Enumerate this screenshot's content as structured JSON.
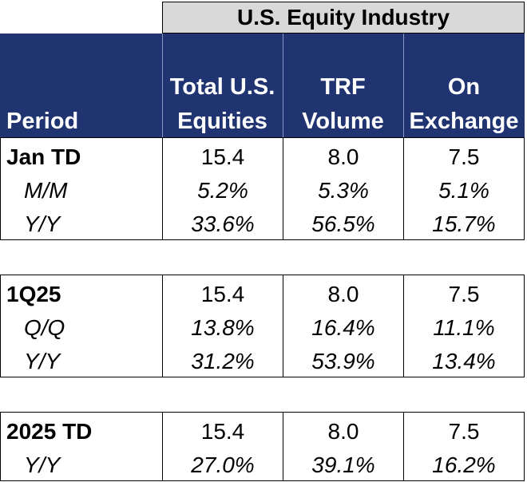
{
  "banner": "U.S. Equity Industry",
  "header": {
    "period": "Period",
    "col1": [
      "Total U.S.",
      "Equities"
    ],
    "col2": [
      "TRF",
      "Volume"
    ],
    "col3": [
      "On",
      "Exchange"
    ]
  },
  "blocks": [
    {
      "rows": [
        {
          "label": "Jan TD",
          "values": [
            "15.4",
            "8.0",
            "7.5"
          ]
        },
        {
          "label": "M/M",
          "values": [
            "5.2%",
            "5.3%",
            "5.1%"
          ]
        },
        {
          "label": "Y/Y",
          "values": [
            "33.6%",
            "56.5%",
            "15.7%"
          ]
        }
      ]
    },
    {
      "rows": [
        {
          "label": "1Q25",
          "values": [
            "15.4",
            "8.0",
            "7.5"
          ]
        },
        {
          "label": "Q/Q",
          "values": [
            "13.8%",
            "16.4%",
            "11.1%"
          ]
        },
        {
          "label": "Y/Y",
          "values": [
            "31.2%",
            "53.9%",
            "13.4%"
          ]
        }
      ]
    },
    {
      "rows": [
        {
          "label": "2025 TD",
          "values": [
            "15.4",
            "8.0",
            "7.5"
          ]
        },
        {
          "label": "Y/Y",
          "values": [
            "27.0%",
            "39.1%",
            "16.2%"
          ]
        }
      ]
    }
  ]
}
